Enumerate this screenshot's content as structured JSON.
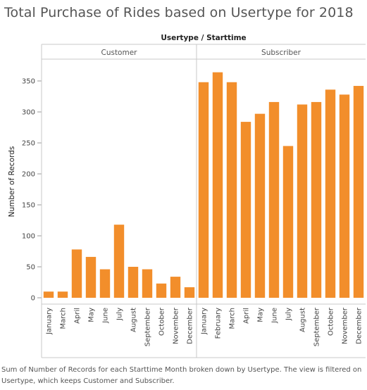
{
  "title": "Total Purchase of Rides based on Usertype for 2018",
  "column_header": "Usertype / Starttime",
  "caption": "Sum of Number of Records for each Starttime Month broken down by Usertype. The view is filtered on Usertype, which keeps Customer and Subscriber.",
  "colors": {
    "bar": "#f28e2b",
    "border": "#c8c8c8",
    "text": "#555555"
  },
  "chart_data": {
    "type": "bar",
    "title": "Total Purchase of Rides based on Usertype for 2018",
    "ylabel": "Number of Records",
    "column_field": "Usertype / Starttime",
    "y_ticks": [
      0,
      50,
      100,
      150,
      200,
      250,
      300,
      350
    ],
    "ylim": [
      0,
      385
    ],
    "grid": false,
    "panels": [
      {
        "name": "Customer",
        "categories": [
          "January",
          "March",
          "April",
          "May",
          "June",
          "July",
          "August",
          "September",
          "October",
          "November",
          "December"
        ],
        "values": [
          10,
          10,
          78,
          66,
          46,
          118,
          50,
          46,
          23,
          34,
          17
        ]
      },
      {
        "name": "Subscriber",
        "categories": [
          "January",
          "February",
          "March",
          "April",
          "May",
          "June",
          "July",
          "August",
          "September",
          "October",
          "November",
          "December"
        ],
        "values": [
          348,
          364,
          348,
          284,
          297,
          316,
          245,
          312,
          316,
          336,
          328,
          342
        ]
      }
    ]
  }
}
